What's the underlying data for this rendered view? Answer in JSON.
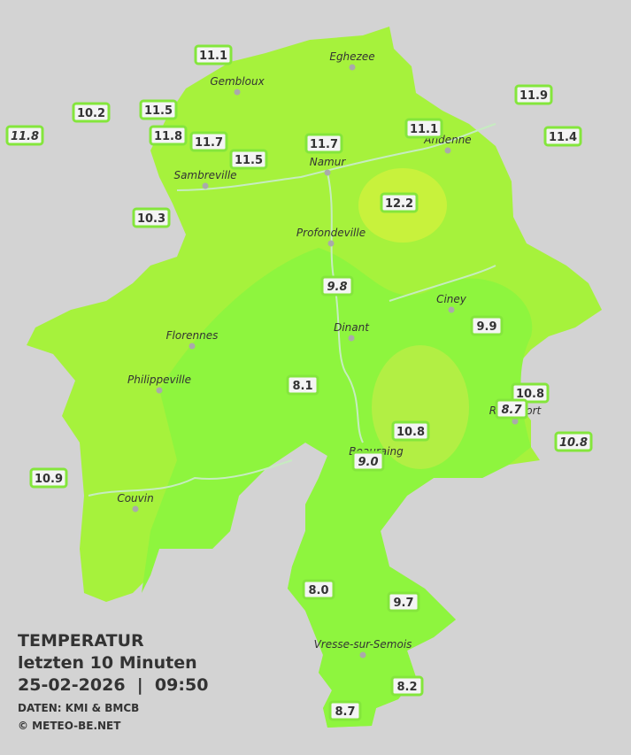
{
  "title": {
    "line1": "TEMPERATUR",
    "line2": "letzten 10 Minuten",
    "line3": "25-02-2026  |  09:50",
    "source": "DATEN: KMI & BMCB",
    "copyright": "© METEO-BE.NET"
  },
  "cities": [
    "Eghezee",
    "Gembloux",
    "Andenne",
    "Namur",
    "Sambreville",
    "Profondeville",
    "Ciney",
    "Dinant",
    "Florennes",
    "Philippeville",
    "Rochefort",
    "Beauraing",
    "Couvin",
    "Vresse-sur-Semois"
  ],
  "stations": [
    {
      "label": "11.1",
      "italic": false
    },
    {
      "label": "10.2",
      "italic": false
    },
    {
      "label": "11.5",
      "italic": false
    },
    {
      "label": "11.8",
      "italic": true
    },
    {
      "label": "11.8",
      "italic": false
    },
    {
      "label": "11.7",
      "italic": false
    },
    {
      "label": "11.5",
      "italic": false
    },
    {
      "label": "11.7",
      "italic": false
    },
    {
      "label": "11.1",
      "italic": false
    },
    {
      "label": "11.9",
      "italic": false
    },
    {
      "label": "11.4",
      "italic": false
    },
    {
      "label": "10.3",
      "italic": false
    },
    {
      "label": "12.2",
      "italic": false
    },
    {
      "label": "9.8",
      "italic": true
    },
    {
      "label": "9.9",
      "italic": false
    },
    {
      "label": "8.1",
      "italic": false
    },
    {
      "label": "10.8",
      "italic": false
    },
    {
      "label": "8.7",
      "italic": true
    },
    {
      "label": "10.8",
      "italic": true
    },
    {
      "label": "10.8",
      "italic": false
    },
    {
      "label": "9.0",
      "italic": true
    },
    {
      "label": "10.9",
      "italic": false
    },
    {
      "label": "8.0",
      "italic": false
    },
    {
      "label": "9.7",
      "italic": false
    },
    {
      "label": "8.2",
      "italic": false
    },
    {
      "label": "8.7",
      "italic": false
    }
  ]
}
